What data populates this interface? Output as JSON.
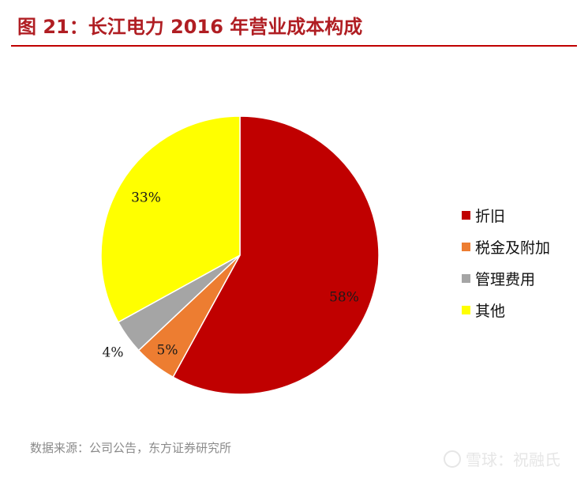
{
  "header": {
    "title": "图 21：长江电力 2016 年营业成本构成"
  },
  "chart_data": {
    "type": "pie",
    "title": "",
    "slices": [
      {
        "name": "折旧",
        "value": 58,
        "label": "58%",
        "color": "#c00000"
      },
      {
        "name": "税金及附加",
        "value": 5,
        "label": "5%",
        "color": "#ed7d31"
      },
      {
        "name": "管理费用",
        "value": 4,
        "label": "4%",
        "color": "#a5a5a5"
      },
      {
        "name": "其他",
        "value": 33,
        "label": "33%",
        "color": "#ffff00"
      }
    ],
    "start_angle_deg": 0,
    "direction": "clockwise",
    "legend_position": "right"
  },
  "footer": {
    "source": "数据来源：公司公告，东方证券研究所",
    "watermark": "雪球：祝融氏"
  }
}
